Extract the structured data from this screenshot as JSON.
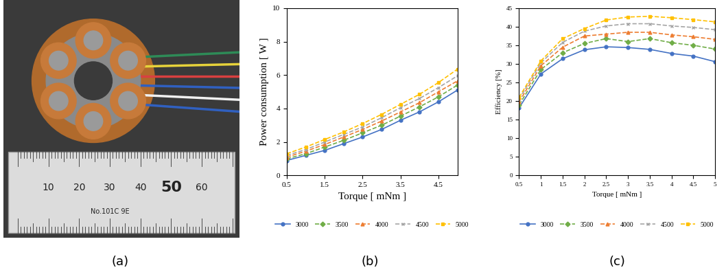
{
  "panel_labels": [
    "(a)",
    "(b)",
    "(c)"
  ],
  "photo": {
    "ruler_numbers": [
      10,
      20,
      30,
      40,
      50,
      60
    ],
    "ruler_text": "No.101C 9E"
  },
  "chart_data": [
    {
      "type": "line",
      "x_label": "Torque [ mNm ]",
      "y_label": "Power consumption [ W ]",
      "x": [
        0.5,
        1.0,
        1.5,
        2.0,
        2.5,
        3.0,
        3.5,
        4.0,
        4.5,
        5.0
      ],
      "xlim": [
        0.5,
        5
      ],
      "xticks": [
        0.5,
        1.5,
        2.5,
        3.5,
        4.5
      ],
      "ylim": [
        0,
        10
      ],
      "yticks": [
        0,
        2,
        4,
        6,
        8,
        10
      ],
      "grid": false,
      "legend": "bottom",
      "series": [
        {
          "name": "3000",
          "color": "#4472c4",
          "marker": "circle",
          "line_style": "solid",
          "values": [
            0.9,
            1.2,
            1.5,
            1.9,
            2.3,
            2.75,
            3.3,
            3.8,
            4.4,
            5.1
          ]
        },
        {
          "name": "3500",
          "color": "#70ad47",
          "marker": "diamond",
          "line_style": "dashed",
          "values": [
            1.0,
            1.3,
            1.7,
            2.1,
            2.55,
            3.0,
            3.55,
            4.1,
            4.7,
            5.4
          ]
        },
        {
          "name": "4000",
          "color": "#ed7d31",
          "marker": "triangle",
          "line_style": "dashed",
          "values": [
            1.1,
            1.45,
            1.85,
            2.3,
            2.75,
            3.25,
            3.8,
            4.35,
            5.0,
            5.65
          ]
        },
        {
          "name": "4500",
          "color": "#a5a5a5",
          "marker": "x",
          "line_style": "dashed",
          "values": [
            1.2,
            1.55,
            2.0,
            2.45,
            2.9,
            3.45,
            4.05,
            4.6,
            5.25,
            5.95
          ]
        },
        {
          "name": "5000",
          "color": "#ffc000",
          "marker": "square",
          "line_style": "dashed",
          "values": [
            1.3,
            1.7,
            2.15,
            2.6,
            3.1,
            3.65,
            4.25,
            4.85,
            5.55,
            6.35
          ]
        }
      ]
    },
    {
      "type": "line",
      "x_label": "Torque [ mNm ]",
      "y_label": "Efficiency [%]",
      "x": [
        0.5,
        1.0,
        1.5,
        2.0,
        2.5,
        3.0,
        3.5,
        4.0,
        4.5,
        5.0
      ],
      "xlim": [
        0.5,
        5
      ],
      "xticks": [
        0.5,
        1,
        1.5,
        2,
        2.5,
        3,
        3.5,
        4,
        4.5,
        5
      ],
      "ylim": [
        0,
        45
      ],
      "yticks": [
        0,
        5,
        10,
        15,
        20,
        25,
        30,
        35,
        40,
        45
      ],
      "grid": false,
      "legend": "bottom",
      "series": [
        {
          "name": "3000",
          "color": "#4472c4",
          "marker": "circle",
          "line_style": "solid",
          "values": [
            18.2,
            27.3,
            31.4,
            33.8,
            34.6,
            34.4,
            33.9,
            32.8,
            32.1,
            30.6
          ]
        },
        {
          "name": "3500",
          "color": "#70ad47",
          "marker": "diamond",
          "line_style": "dashed",
          "values": [
            19.0,
            28.5,
            33.0,
            35.5,
            36.8,
            36.0,
            36.8,
            35.7,
            35.0,
            34.0
          ]
        },
        {
          "name": "4000",
          "color": "#ed7d31",
          "marker": "triangle",
          "line_style": "dashed",
          "values": [
            19.8,
            29.5,
            34.5,
            37.5,
            38.0,
            38.5,
            38.5,
            37.8,
            37.3,
            36.6
          ]
        },
        {
          "name": "4500",
          "color": "#a5a5a5",
          "marker": "x",
          "line_style": "dashed",
          "values": [
            20.5,
            30.3,
            35.8,
            38.8,
            40.2,
            40.8,
            40.8,
            40.2,
            39.8,
            39.2
          ]
        },
        {
          "name": "5000",
          "color": "#ffc000",
          "marker": "square",
          "line_style": "dashed",
          "values": [
            21.0,
            30.8,
            36.8,
            39.5,
            41.8,
            42.6,
            42.8,
            42.4,
            41.9,
            41.3
          ]
        }
      ]
    }
  ]
}
